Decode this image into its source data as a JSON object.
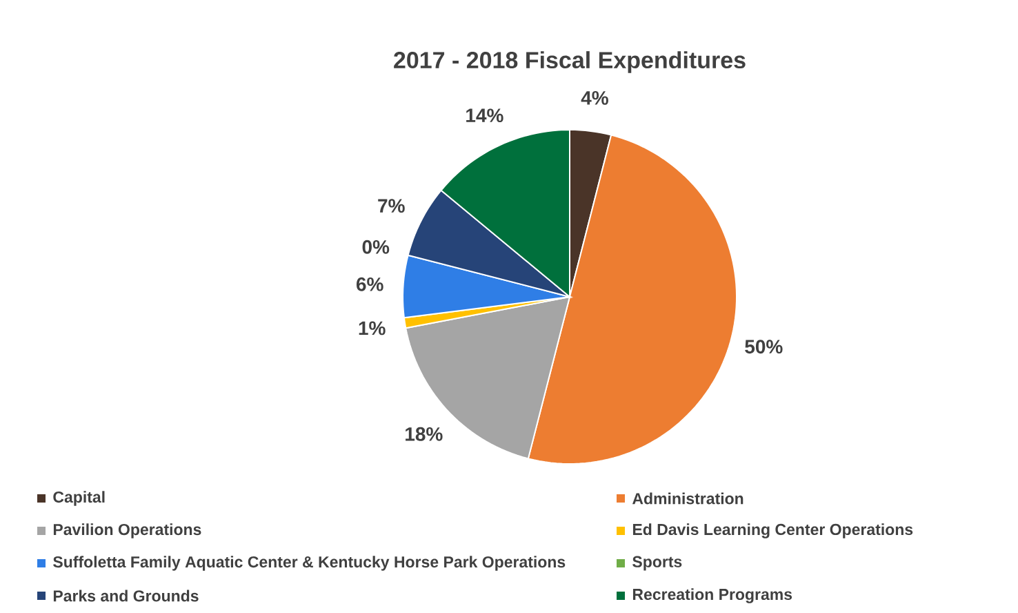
{
  "chart_data": {
    "type": "pie",
    "title": "2017 - 2018 Fiscal Expenditures",
    "categories": [
      "Capital",
      "Administration",
      "Pavilion Operations",
      "Ed Davis Learning Center Operations",
      "Suffoletta Family Aquatic Center & Kentucky Horse Park Operations",
      "Sports",
      "Parks and Grounds",
      "Recreation Programs"
    ],
    "values": [
      4,
      50,
      18,
      1,
      6,
      0,
      7,
      14
    ],
    "colors": [
      "#4a3428",
      "#ed7d31",
      "#a5a5a5",
      "#ffc000",
      "#2f7ee6",
      "#70ad47",
      "#264478",
      "#00703c"
    ],
    "value_labels": [
      "4%",
      "50%",
      "18%",
      "1%",
      "6%",
      "0%",
      "7%",
      "14%"
    ],
    "legend": "bottom"
  }
}
